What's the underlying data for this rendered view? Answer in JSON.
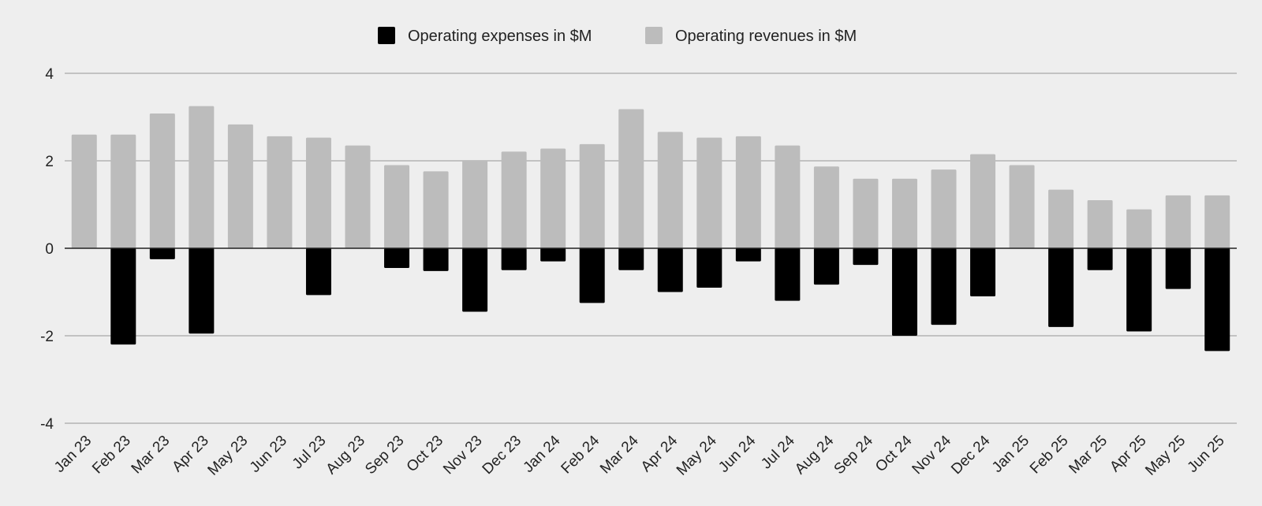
{
  "chart_data": {
    "type": "bar",
    "title": "",
    "xlabel": "",
    "ylabel": "",
    "ylim": [
      -4,
      4
    ],
    "yticks": [
      4,
      2,
      0,
      -2,
      -4
    ],
    "ytick_labels": [
      "4",
      "2",
      "0",
      "-2",
      "-4"
    ],
    "grid": true,
    "legend_position": "top-center",
    "categories": [
      "Jan 23",
      "Feb 23",
      "Mar 23",
      "Apr 23",
      "May 23",
      "Jun 23",
      "Jul 23",
      "Aug 23",
      "Sep 23",
      "Oct 23",
      "Nov 23",
      "Dec 23",
      "Jan 24",
      "Feb 24",
      "Mar 24",
      "Apr 24",
      "May 24",
      "Jun 24",
      "Jul 24",
      "Aug 24",
      "Sep 24",
      "Oct 24",
      "Nov 24",
      "Dec 24",
      "Jan 25",
      "Feb 25",
      "Mar 25",
      "Apr 25",
      "May 25",
      "Jun 25"
    ],
    "series": [
      {
        "name": "Operating expenses in $M",
        "color": "#000000",
        "values": [
          0,
          -2.2,
          -0.25,
          -1.95,
          0,
          0,
          -1.07,
          0,
          -0.45,
          -0.52,
          -1.45,
          -0.5,
          -0.3,
          -1.25,
          -0.5,
          -1.0,
          -0.9,
          -0.3,
          -1.2,
          -0.83,
          -0.38,
          -2.0,
          -1.75,
          -1.1,
          0,
          -1.8,
          -0.5,
          -1.9,
          -0.93,
          -2.35
        ]
      },
      {
        "name": "Operating revenues in $M",
        "color": "#bcbcbc",
        "values": [
          2.6,
          2.6,
          3.08,
          3.25,
          2.83,
          2.56,
          2.53,
          2.35,
          1.9,
          1.76,
          2.0,
          2.21,
          2.28,
          2.38,
          3.18,
          2.66,
          2.53,
          2.56,
          2.35,
          1.87,
          1.59,
          1.59,
          1.8,
          2.15,
          1.9,
          1.34,
          1.1,
          0.89,
          1.21,
          1.21
        ]
      }
    ]
  }
}
